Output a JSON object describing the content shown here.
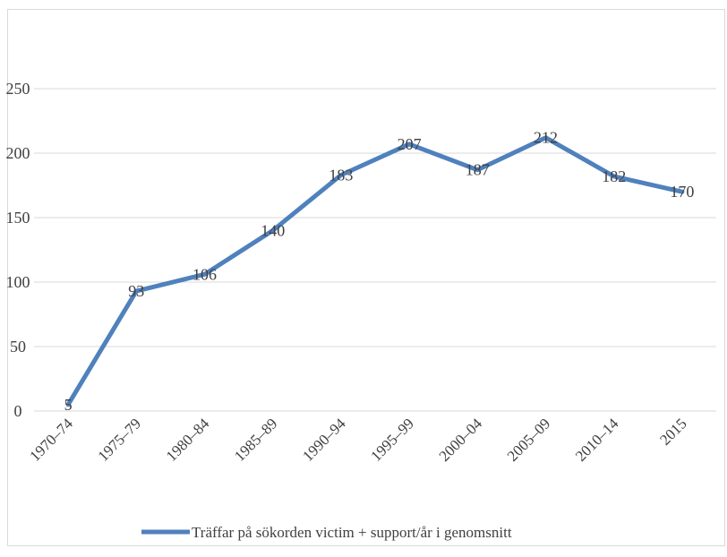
{
  "chart_data": {
    "type": "line",
    "categories": [
      "1970–74",
      "1975–79",
      "1980–84",
      "1985–89",
      "1990–94",
      "1995–99",
      "2000–04",
      "2005–09",
      "2010–14",
      "2015"
    ],
    "series": [
      {
        "name": "Träffar på sökorden victim + support/år i genomsnitt",
        "values": [
          5,
          93,
          106,
          140,
          183,
          207,
          187,
          212,
          182,
          170
        ],
        "color": "#4f81bd"
      }
    ],
    "yticks": [
      "0",
      "50",
      "100",
      "150",
      "200",
      "250"
    ],
    "ylim": [
      0,
      300
    ],
    "grid": true,
    "legend_position": "bottom"
  }
}
